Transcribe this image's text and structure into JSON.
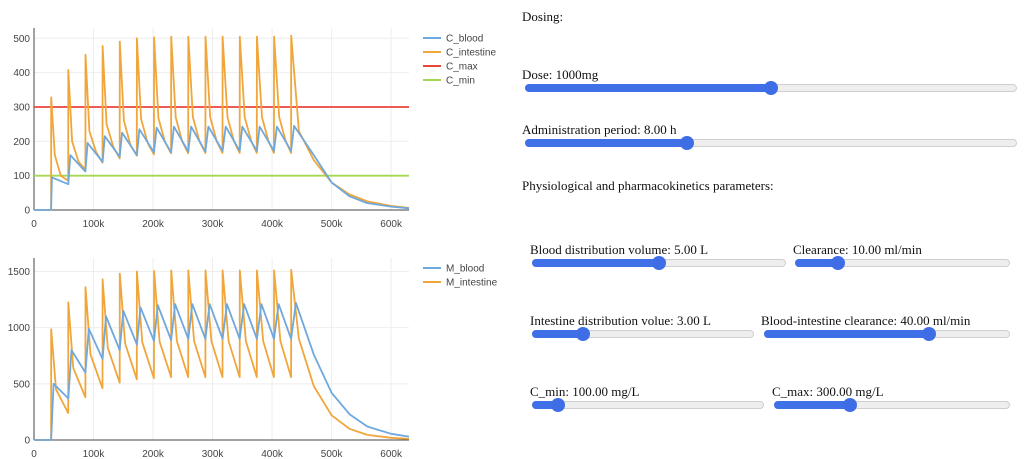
{
  "chart_data": [
    {
      "type": "line",
      "x_range": [
        0,
        630000
      ],
      "ylim": [
        0,
        530
      ],
      "x_ticks": [
        {
          "v": 0,
          "l": "0"
        },
        {
          "v": 100000,
          "l": "100k"
        },
        {
          "v": 200000,
          "l": "200k"
        },
        {
          "v": 300000,
          "l": "300k"
        },
        {
          "v": 400000,
          "l": "400k"
        },
        {
          "v": 500000,
          "l": "500k"
        },
        {
          "v": 600000,
          "l": "600k"
        }
      ],
      "y_ticks": [
        {
          "v": 0,
          "l": "0"
        },
        {
          "v": 100,
          "l": "100"
        },
        {
          "v": 200,
          "l": "200"
        },
        {
          "v": 300,
          "l": "300"
        },
        {
          "v": 400,
          "l": "400"
        },
        {
          "v": 500,
          "l": "500"
        }
      ],
      "series": [
        {
          "name": "C_blood",
          "color": "#6fa8dc",
          "points": [
            [
              0,
              0
            ],
            [
              28800,
              0
            ],
            [
              30000,
              95
            ],
            [
              57600,
              75
            ],
            [
              61000,
              160
            ],
            [
              86400,
              112
            ],
            [
              90000,
              195
            ],
            [
              115200,
              140
            ],
            [
              119000,
              215
            ],
            [
              144000,
              155
            ],
            [
              148000,
              225
            ],
            [
              172800,
              160
            ],
            [
              177000,
              235
            ],
            [
              201600,
              168
            ],
            [
              206000,
              240
            ],
            [
              230400,
              168
            ],
            [
              235000,
              243
            ],
            [
              259200,
              170
            ],
            [
              264000,
              243
            ],
            [
              288000,
              170
            ],
            [
              293000,
              243
            ],
            [
              316800,
              172
            ],
            [
              322000,
              243
            ],
            [
              345600,
              172
            ],
            [
              350000,
              243
            ],
            [
              374400,
              172
            ],
            [
              379000,
              243
            ],
            [
              403200,
              172
            ],
            [
              408000,
              243
            ],
            [
              432000,
              172
            ],
            [
              437000,
              245
            ],
            [
              470000,
              160
            ],
            [
              500000,
              80
            ],
            [
              530000,
              40
            ],
            [
              560000,
              20
            ],
            [
              600000,
              10
            ],
            [
              630000,
              5
            ]
          ]
        },
        {
          "name": "C_intestine",
          "color": "#f0a63a",
          "points": [
            [
              0,
              0
            ],
            [
              28800,
              0
            ],
            [
              28900,
              328
            ],
            [
              35000,
              160
            ],
            [
              45000,
              100
            ],
            [
              57500,
              85
            ],
            [
              57700,
              408
            ],
            [
              64000,
              200
            ],
            [
              75000,
              140
            ],
            [
              86300,
              118
            ],
            [
              86500,
              452
            ],
            [
              93000,
              230
            ],
            [
              104000,
              170
            ],
            [
              115100,
              138
            ],
            [
              115300,
              478
            ],
            [
              122000,
              250
            ],
            [
              133000,
              185
            ],
            [
              143900,
              150
            ],
            [
              144100,
              490
            ],
            [
              151000,
              260
            ],
            [
              162000,
              190
            ],
            [
              172700,
              158
            ],
            [
              172900,
              500
            ],
            [
              180000,
              265
            ],
            [
              191000,
              195
            ],
            [
              201500,
              162
            ],
            [
              201700,
              503
            ],
            [
              209000,
              268
            ],
            [
              220000,
              198
            ],
            [
              230300,
              165
            ],
            [
              230500,
              505
            ],
            [
              238000,
              270
            ],
            [
              249000,
              200
            ],
            [
              259100,
              165
            ],
            [
              259300,
              505
            ],
            [
              267000,
              270
            ],
            [
              278000,
              200
            ],
            [
              287900,
              166
            ],
            [
              288100,
              505
            ],
            [
              296000,
              270
            ],
            [
              307000,
              200
            ],
            [
              316700,
              166
            ],
            [
              316900,
              505
            ],
            [
              325000,
              270
            ],
            [
              336000,
              200
            ],
            [
              345500,
              166
            ],
            [
              345700,
              505
            ],
            [
              354000,
              270
            ],
            [
              365000,
              200
            ],
            [
              374300,
              166
            ],
            [
              374500,
              505
            ],
            [
              383000,
              270
            ],
            [
              394000,
              200
            ],
            [
              403100,
              166
            ],
            [
              403300,
              505
            ],
            [
              412000,
              270
            ],
            [
              423000,
              200
            ],
            [
              431900,
              166
            ],
            [
              432100,
              508
            ],
            [
              445000,
              230
            ],
            [
              470000,
              145
            ],
            [
              500000,
              80
            ],
            [
              530000,
              45
            ],
            [
              560000,
              25
            ],
            [
              600000,
              12
            ],
            [
              630000,
              6
            ]
          ]
        },
        {
          "name": "C_max",
          "color": "#e8463a",
          "points": [
            [
              0,
              300
            ],
            [
              630000,
              300
            ]
          ]
        },
        {
          "name": "C_min",
          "color": "#a6d854",
          "points": [
            [
              0,
              100
            ],
            [
              630000,
              100
            ]
          ]
        }
      ]
    },
    {
      "type": "line",
      "x_range": [
        0,
        630000
      ],
      "ylim": [
        0,
        1620
      ],
      "x_ticks": [
        {
          "v": 0,
          "l": "0"
        },
        {
          "v": 100000,
          "l": "100k"
        },
        {
          "v": 200000,
          "l": "200k"
        },
        {
          "v": 300000,
          "l": "300k"
        },
        {
          "v": 400000,
          "l": "400k"
        },
        {
          "v": 500000,
          "l": "500k"
        },
        {
          "v": 600000,
          "l": "600k"
        }
      ],
      "y_ticks": [
        {
          "v": 0,
          "l": "0"
        },
        {
          "v": 500,
          "l": "500"
        },
        {
          "v": 1000,
          "l": "1000"
        },
        {
          "v": 1500,
          "l": "1500"
        }
      ],
      "series": [
        {
          "name": "M_blood",
          "color": "#6fa8dc",
          "points": [
            [
              0,
              0
            ],
            [
              28800,
              0
            ],
            [
              33000,
              500
            ],
            [
              57600,
              370
            ],
            [
              63000,
              800
            ],
            [
              86400,
              600
            ],
            [
              92000,
              990
            ],
            [
              115200,
              720
            ],
            [
              121000,
              1100
            ],
            [
              144000,
              800
            ],
            [
              150000,
              1150
            ],
            [
              172800,
              850
            ],
            [
              179000,
              1180
            ],
            [
              201600,
              880
            ],
            [
              208000,
              1200
            ],
            [
              230400,
              890
            ],
            [
              237000,
              1210
            ],
            [
              259200,
              900
            ],
            [
              266000,
              1210
            ],
            [
              288000,
              900
            ],
            [
              295000,
              1210
            ],
            [
              316800,
              900
            ],
            [
              324000,
              1210
            ],
            [
              345600,
              900
            ],
            [
              353000,
              1210
            ],
            [
              374400,
              900
            ],
            [
              382000,
              1210
            ],
            [
              403200,
              900
            ],
            [
              411000,
              1210
            ],
            [
              432000,
              900
            ],
            [
              440000,
              1220
            ],
            [
              470000,
              760
            ],
            [
              500000,
              420
            ],
            [
              530000,
              230
            ],
            [
              560000,
              120
            ],
            [
              600000,
              55
            ],
            [
              630000,
              30
            ]
          ]
        },
        {
          "name": "M_intestine",
          "color": "#f0a63a",
          "points": [
            [
              0,
              0
            ],
            [
              28800,
              0
            ],
            [
              28900,
              985
            ],
            [
              37000,
              450
            ],
            [
              57500,
              240
            ],
            [
              57700,
              1225
            ],
            [
              66000,
              640
            ],
            [
              86300,
              380
            ],
            [
              86500,
              1360
            ],
            [
              95000,
              760
            ],
            [
              115100,
              460
            ],
            [
              115300,
              1430
            ],
            [
              124000,
              820
            ],
            [
              143900,
              510
            ],
            [
              144100,
              1480
            ],
            [
              153000,
              860
            ],
            [
              172700,
              540
            ],
            [
              172900,
              1500
            ],
            [
              182000,
              870
            ],
            [
              201500,
              550
            ],
            [
              201700,
              1505
            ],
            [
              211000,
              875
            ],
            [
              230300,
              560
            ],
            [
              230500,
              1510
            ],
            [
              240000,
              880
            ],
            [
              259100,
              560
            ],
            [
              259300,
              1510
            ],
            [
              269000,
              880
            ],
            [
              287900,
              560
            ],
            [
              288100,
              1510
            ],
            [
              298000,
              880
            ],
            [
              316700,
              560
            ],
            [
              316900,
              1510
            ],
            [
              327000,
              880
            ],
            [
              345500,
              560
            ],
            [
              345700,
              1510
            ],
            [
              356000,
              880
            ],
            [
              374300,
              560
            ],
            [
              374500,
              1510
            ],
            [
              385000,
              880
            ],
            [
              403100,
              560
            ],
            [
              403300,
              1510
            ],
            [
              414000,
              880
            ],
            [
              431900,
              560
            ],
            [
              432100,
              1515
            ],
            [
              445000,
              900
            ],
            [
              470000,
              480
            ],
            [
              500000,
              220
            ],
            [
              530000,
              100
            ],
            [
              560000,
              45
            ],
            [
              600000,
              20
            ],
            [
              630000,
              10
            ]
          ]
        }
      ]
    }
  ],
  "panel": {
    "dosing_heading": "Dosing:",
    "dose_label": "Dose: 1000mg",
    "dose_level": 0.5,
    "period_label": "Administration period: 8.00 h",
    "period_level": 0.33,
    "physio_heading": "Physiological and pharmacokinetics parameters:",
    "blood_volume_label": "Blood distribution volume: 5.00 L",
    "blood_volume_level": 0.5,
    "clearance_label": "Clearance: 10.00 ml/min",
    "clearance_level": 0.2,
    "intestine_volume_label": "Intestine distribution volue: 3.00 L",
    "intestine_volume_level": 0.23,
    "bi_clearance_label": "Blood-intestine clearance: 40.00 ml/min",
    "bi_clearance_level": 0.67,
    "cmin_label": "C_min: 100.00 mg/L",
    "cmin_level": 0.11,
    "cmax_label": "C_max: 300.00 mg/L",
    "cmax_level": 0.32
  }
}
